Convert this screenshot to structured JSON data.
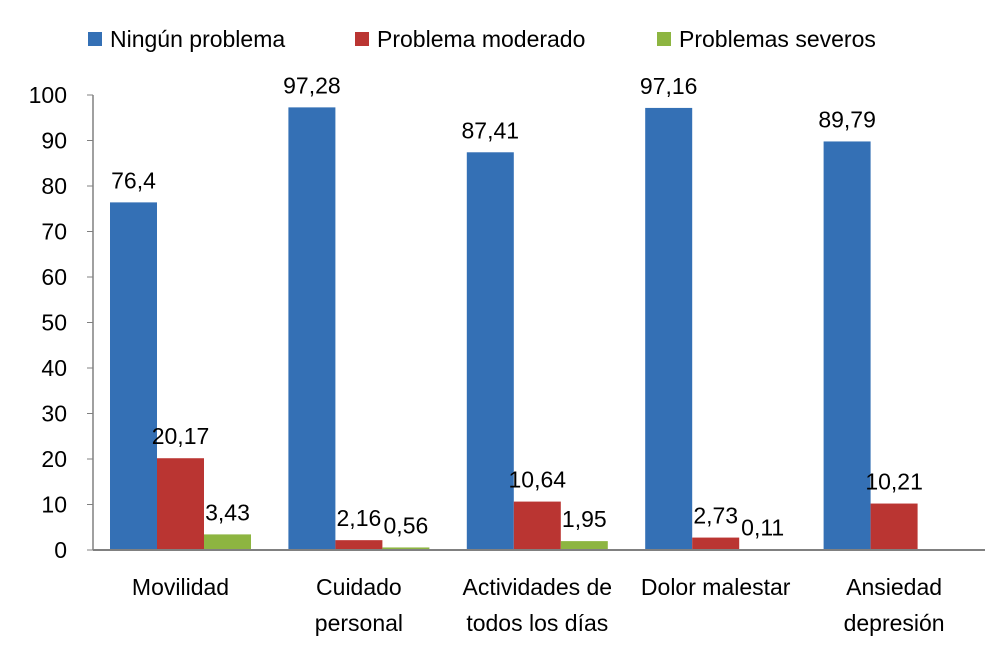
{
  "chart_data": {
    "type": "bar",
    "title": "",
    "xlabel": "",
    "ylabel": "",
    "ylim": [
      0,
      100
    ],
    "yticks": [
      "0",
      "10",
      "20",
      "30",
      "40",
      "50",
      "60",
      "70",
      "80",
      "90",
      "100"
    ],
    "grid": false,
    "legend_position": "top",
    "categories": [
      [
        "Movilidad"
      ],
      [
        "Cuidado",
        "personal"
      ],
      [
        "Actividades de",
        "todos los días"
      ],
      [
        "Dolor malestar"
      ],
      [
        "Ansiedad",
        "depresión"
      ]
    ],
    "series": [
      {
        "name": "Ningún problema",
        "color": "#3470B5",
        "values": [
          76.4,
          97.28,
          87.41,
          97.16,
          89.79
        ],
        "labels": [
          "76,4",
          "97,28",
          "87,41",
          "97,16",
          "89,79"
        ]
      },
      {
        "name": "Problema moderado",
        "color": "#BA3532",
        "values": [
          20.17,
          2.16,
          10.64,
          2.73,
          10.21
        ],
        "labels": [
          "20,17",
          "2,16",
          "10,64",
          "2,73",
          "10,21"
        ]
      },
      {
        "name": "Problemas severos",
        "color": "#8DB541",
        "values": [
          3.43,
          0.56,
          1.95,
          0.11,
          null
        ],
        "labels": [
          "3,43",
          "0,56",
          "1,95",
          "0,11",
          null
        ]
      }
    ]
  }
}
